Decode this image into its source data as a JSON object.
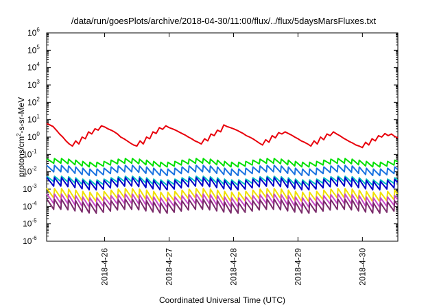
{
  "chart_data": {
    "type": "line",
    "title": "/data/run/goesPlots/archive/2018-04-30/11:00/flux/../flux/5daysMarsFluxes.txt",
    "xlabel": "Coordinated Universal Time (UTC)",
    "ylabel": {
      "base": "protons/cm",
      "sup": "2",
      "rest": "-s-sr-MeV"
    },
    "y_scale": "log",
    "ylim_exp": [
      -6,
      6
    ],
    "y_tick_base": "10",
    "y_tick_exponents": [
      "-6",
      "-5",
      "-4",
      "-3",
      "-2",
      "-1",
      "0",
      "1",
      "2",
      "3",
      "4",
      "5",
      "6"
    ],
    "x_range_days": [
      25.1,
      30.55
    ],
    "x_ticks": [
      {
        "label": "2018-4-26",
        "day": 26
      },
      {
        "label": "2018-4-27",
        "day": 27
      },
      {
        "label": "2018-4-28",
        "day": 28
      },
      {
        "label": "2018-4-29",
        "day": 29
      },
      {
        "label": "2018-4-30",
        "day": 30
      }
    ],
    "grid": false,
    "series": [
      {
        "color": "#e8000b",
        "x": [
          25.1,
          25.15,
          25.2,
          25.25,
          25.3,
          25.35,
          25.4,
          25.45,
          25.5,
          25.55,
          25.6,
          25.65,
          25.7,
          25.75,
          25.8,
          25.85,
          25.9,
          25.95,
          26.0,
          26.05,
          26.1,
          26.15,
          26.2,
          26.25,
          26.3,
          26.35,
          26.4,
          26.45,
          26.5,
          26.55,
          26.6,
          26.65,
          26.7,
          26.75,
          26.8,
          26.85,
          26.9,
          26.95,
          27.0,
          27.05,
          27.1,
          27.15,
          27.2,
          27.25,
          27.3,
          27.35,
          27.4,
          27.45,
          27.5,
          27.55,
          27.6,
          27.65,
          27.7,
          27.75,
          27.8,
          27.85,
          27.9,
          27.95,
          28.0,
          28.05,
          28.1,
          28.15,
          28.2,
          28.25,
          28.3,
          28.35,
          28.4,
          28.45,
          28.5,
          28.55,
          28.6,
          28.65,
          28.7,
          28.75,
          28.8,
          28.85,
          28.9,
          28.95,
          29.0,
          29.05,
          29.1,
          29.15,
          29.2,
          29.25,
          29.3,
          29.35,
          29.4,
          29.45,
          29.5,
          29.55,
          29.6,
          29.65,
          29.7,
          29.75,
          29.8,
          29.85,
          29.9,
          29.95,
          30.0,
          30.05,
          30.1,
          30.15,
          30.2,
          30.25,
          30.3,
          30.35,
          30.4,
          30.45,
          30.5,
          30.55
        ],
        "y": [
          6,
          5,
          4,
          2.5,
          1.5,
          1.0,
          0.6,
          0.4,
          0.3,
          0.6,
          0.4,
          1.0,
          0.8,
          2.0,
          1.5,
          3.0,
          2.5,
          4.5,
          3.8,
          3.0,
          2.5,
          2.0,
          1.5,
          1.0,
          0.8,
          0.6,
          0.45,
          0.35,
          0.3,
          0.6,
          0.4,
          1.0,
          0.8,
          2.0,
          1.6,
          3.5,
          2.8,
          4.5,
          3.5,
          3.0,
          2.5,
          2.0,
          1.6,
          1.3,
          1.0,
          0.8,
          0.6,
          0.5,
          0.4,
          0.8,
          0.6,
          1.5,
          1.2,
          2.5,
          2.0,
          5.0,
          4.0,
          3.5,
          3.0,
          2.5,
          2.0,
          1.6,
          1.2,
          1.0,
          0.8,
          0.6,
          0.45,
          0.35,
          0.7,
          0.5,
          1.2,
          0.9,
          1.8,
          1.5,
          2.0,
          1.6,
          1.3,
          1.0,
          0.8,
          0.6,
          0.5,
          0.4,
          0.3,
          0.6,
          0.4,
          1.0,
          0.7,
          1.5,
          1.2,
          2.0,
          1.5,
          1.2,
          0.9,
          0.7,
          0.55,
          0.45,
          0.35,
          0.3,
          0.25,
          0.5,
          0.35,
          0.8,
          0.6,
          1.2,
          1.0,
          1.6,
          1.2,
          1.5,
          1.1,
          0.9
        ]
      },
      {
        "color": "#00e000",
        "base": 0.025,
        "amplitude": 2.0,
        "period": 0.11
      },
      {
        "color": "#1a72e0",
        "base": 0.008,
        "amplitude": 2.6,
        "period": 0.11
      },
      {
        "color": "#00c0c0",
        "base": 0.0022,
        "amplitude": 2.2,
        "period": 0.11
      },
      {
        "color": "#0000c8",
        "base": 0.0012,
        "amplitude": 3.5,
        "period": 0.11
      },
      {
        "color": "#f0e000",
        "base": 0.00025,
        "amplitude": 4.0,
        "period": 0.11
      },
      {
        "color": "#c84bc8",
        "base": 0.00012,
        "amplitude": 4.0,
        "period": 0.11
      },
      {
        "color": "#7a2a6a",
        "base": 5.5e-05,
        "amplitude": 4.5,
        "period": 0.11
      }
    ]
  }
}
